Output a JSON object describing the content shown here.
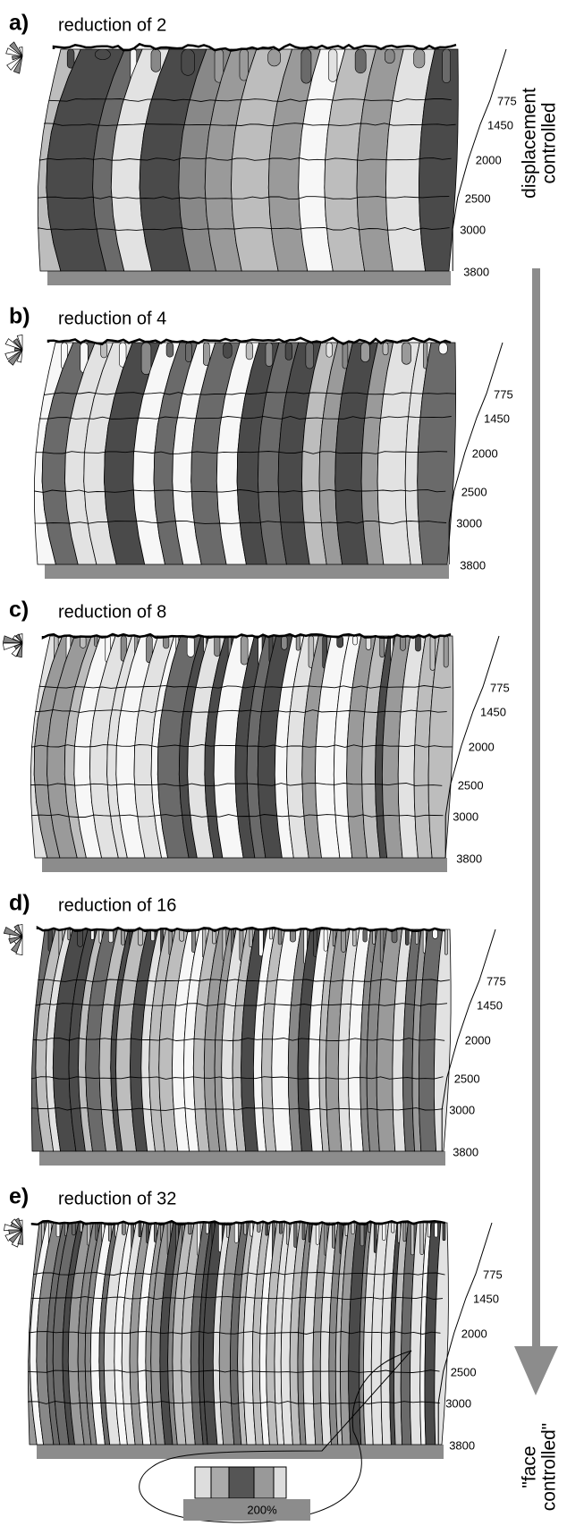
{
  "panels": [
    {
      "label": "a)",
      "title": "reduction of 2",
      "steps": [
        775,
        1450,
        2000,
        2500,
        3000,
        3800
      ]
    },
    {
      "label": "b)",
      "title": "reduction of 4",
      "steps": [
        775,
        1450,
        2000,
        2500,
        3000,
        3800
      ]
    },
    {
      "label": "c)",
      "title": "reduction of 8",
      "steps": [
        775,
        1450,
        2000,
        2500,
        3000,
        3800
      ]
    },
    {
      "label": "d)",
      "title": "reduction of 16",
      "steps": [
        775,
        1450,
        2000,
        2500,
        3000,
        3800
      ]
    },
    {
      "label": "e)",
      "title": "reduction of 32",
      "steps": [
        775,
        1450,
        2000,
        2500,
        3000,
        3800
      ]
    }
  ],
  "side_labels": {
    "top": [
      "displacement",
      "controlled"
    ],
    "bottom": [
      "\"face",
      "controlled\""
    ]
  },
  "inset_label": "200%"
}
